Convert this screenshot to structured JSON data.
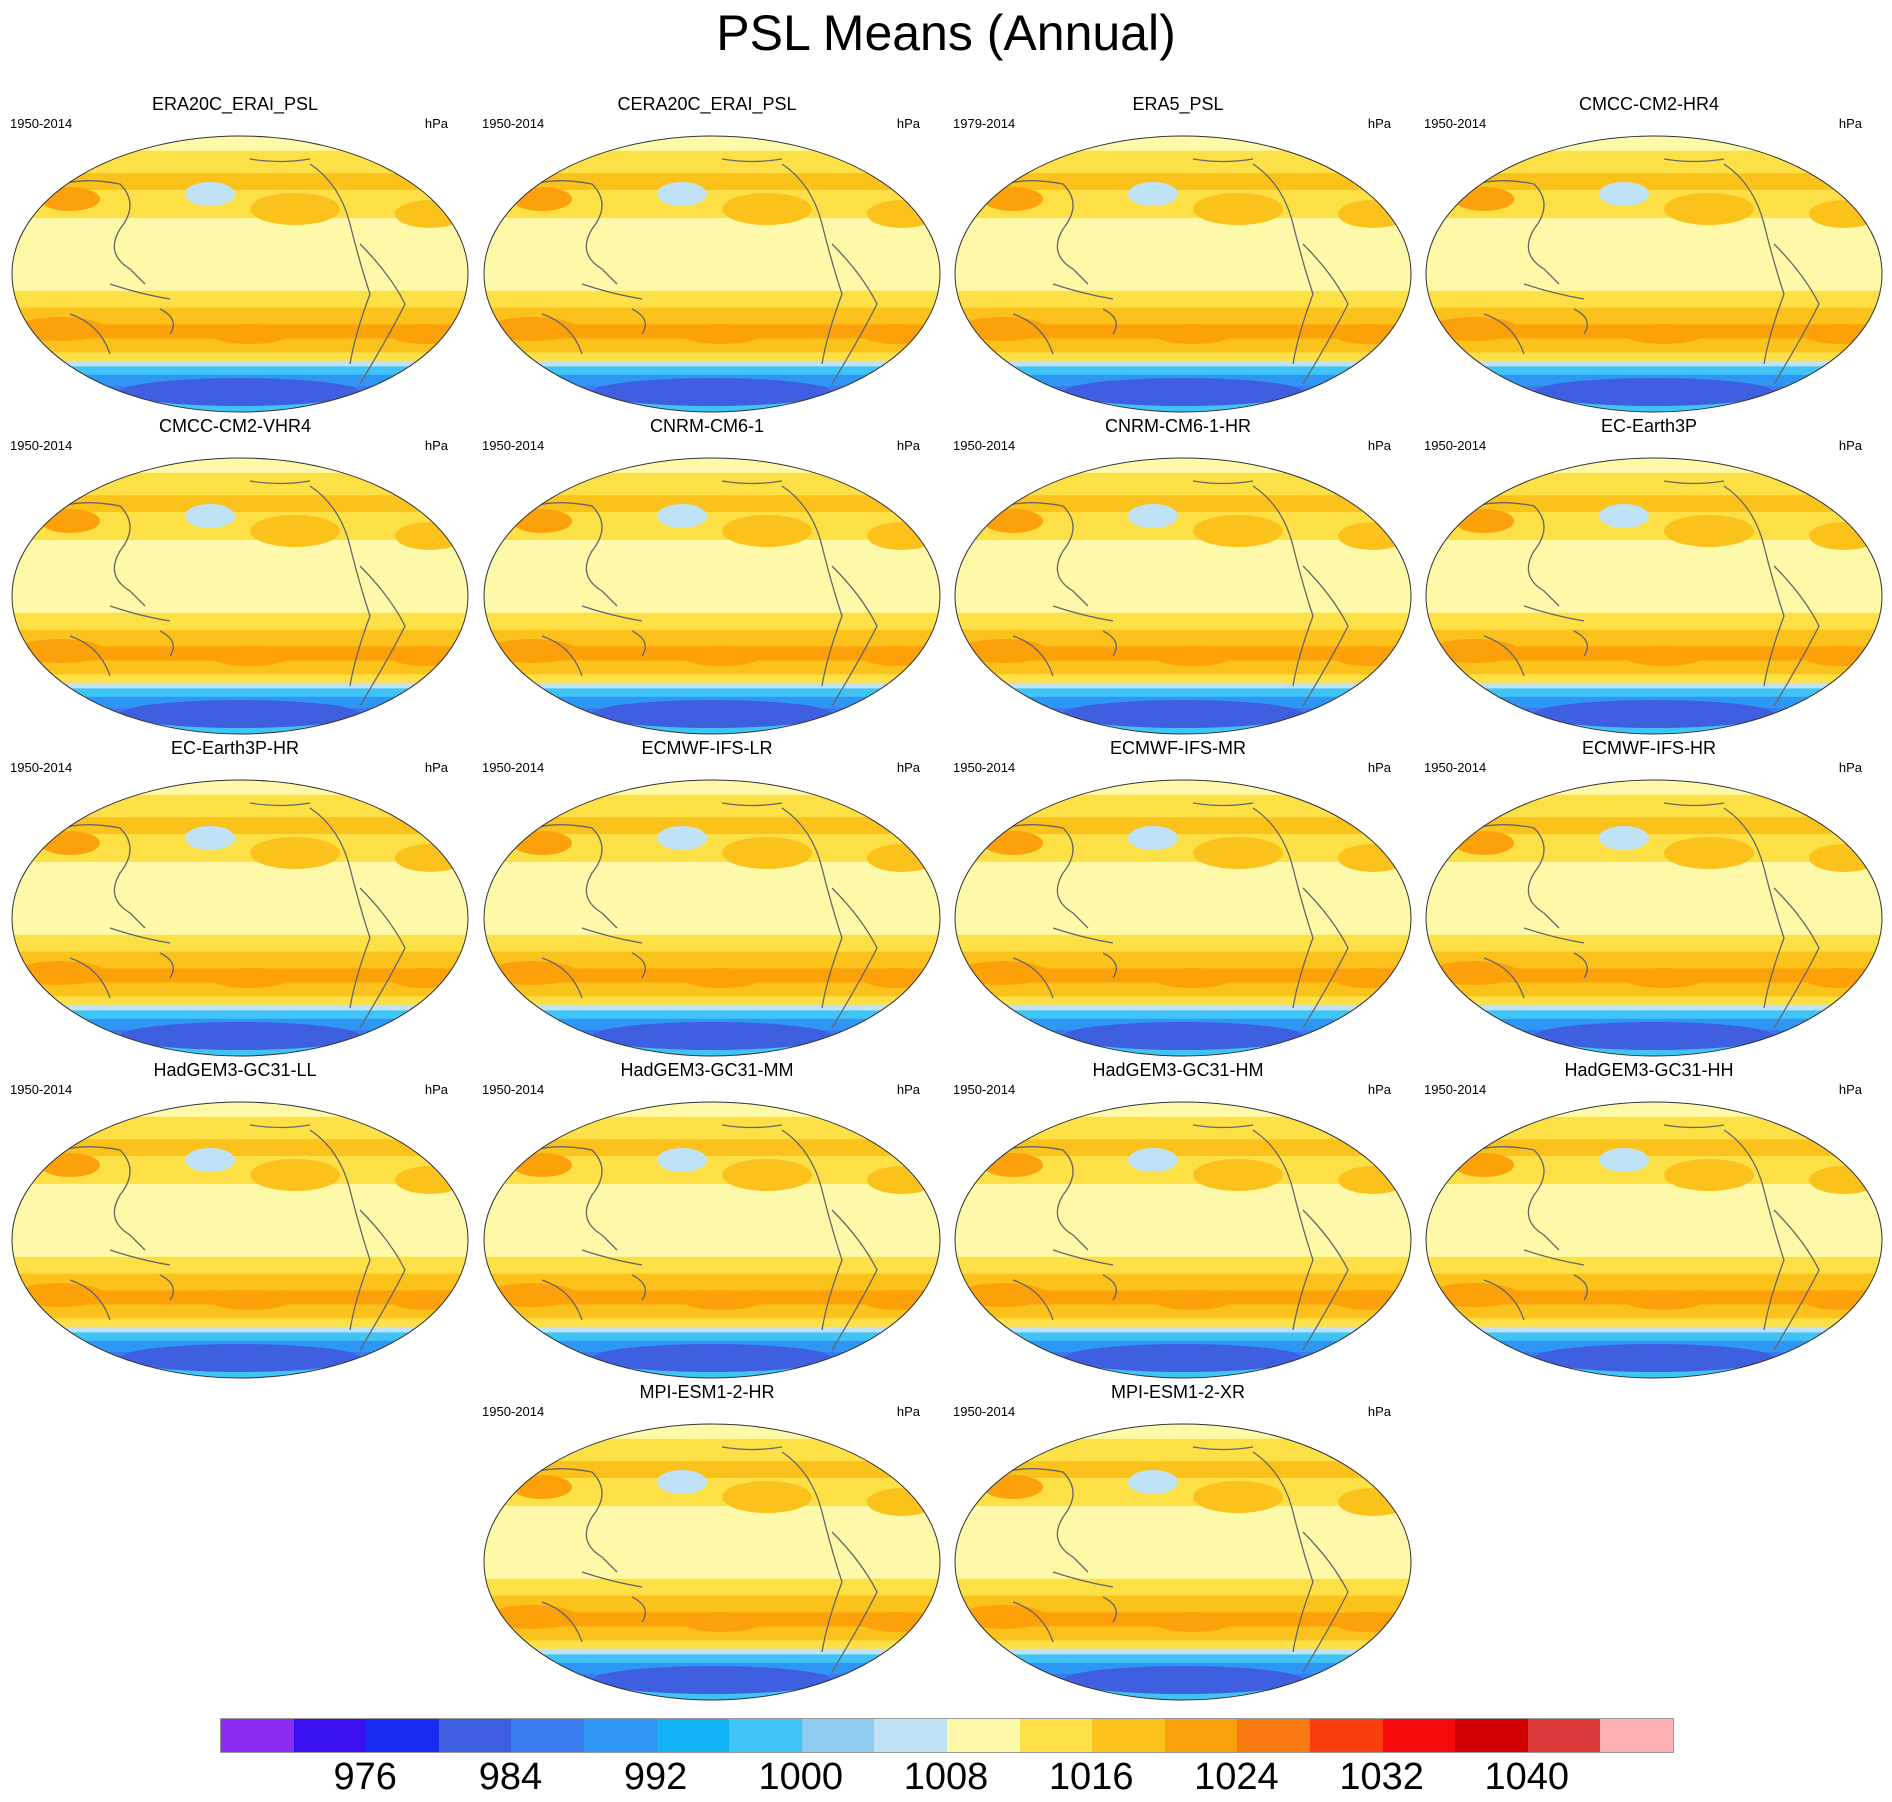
{
  "title": "PSL Means (Annual)",
  "panels": [
    {
      "name": "ERA20C_ERAI_PSL",
      "years": "1950-2014",
      "unit": "hPa"
    },
    {
      "name": "CERA20C_ERAI_PSL",
      "years": "1950-2014",
      "unit": "hPa"
    },
    {
      "name": "ERA5_PSL",
      "years": "1979-2014",
      "unit": "hPa"
    },
    {
      "name": "CMCC-CM2-HR4",
      "years": "1950-2014",
      "unit": "hPa"
    },
    {
      "name": "CMCC-CM2-VHR4",
      "years": "1950-2014",
      "unit": "hPa"
    },
    {
      "name": "CNRM-CM6-1",
      "years": "1950-2014",
      "unit": "hPa"
    },
    {
      "name": "CNRM-CM6-1-HR",
      "years": "1950-2014",
      "unit": "hPa"
    },
    {
      "name": "EC-Earth3P",
      "years": "1950-2014",
      "unit": "hPa"
    },
    {
      "name": "EC-Earth3P-HR",
      "years": "1950-2014",
      "unit": "hPa"
    },
    {
      "name": "ECMWF-IFS-LR",
      "years": "1950-2014",
      "unit": "hPa"
    },
    {
      "name": "ECMWF-IFS-MR",
      "years": "1950-2014",
      "unit": "hPa"
    },
    {
      "name": "ECMWF-IFS-HR",
      "years": "1950-2014",
      "unit": "hPa"
    },
    {
      "name": "HadGEM3-GC31-LL",
      "years": "1950-2014",
      "unit": "hPa"
    },
    {
      "name": "HadGEM3-GC31-MM",
      "years": "1950-2014",
      "unit": "hPa"
    },
    {
      "name": "HadGEM3-GC31-HM",
      "years": "1950-2014",
      "unit": "hPa"
    },
    {
      "name": "HadGEM3-GC31-HH",
      "years": "1950-2014",
      "unit": "hPa"
    },
    {
      "name": "MPI-ESM1-2-HR",
      "years": "1950-2014",
      "unit": "hPa"
    },
    {
      "name": "MPI-ESM1-2-XR",
      "years": "1950-2014",
      "unit": "hPa"
    }
  ],
  "colorbar": {
    "colors": [
      "#8b2cf5",
      "#3a10f0",
      "#1a2cf2",
      "#3e5fe0",
      "#3a7cf0",
      "#2e96f5",
      "#12b4f7",
      "#40c4f8",
      "#8fcdf0",
      "#bfe2f6",
      "#fdf9a8",
      "#fce046",
      "#fcc21c",
      "#fca10a",
      "#fb7a12",
      "#fa3e0c",
      "#f70a0a",
      "#d00000",
      "#dc3a3a",
      "#fcb0b2"
    ],
    "labels": [
      "976",
      "984",
      "992",
      "1000",
      "1008",
      "1016",
      "1024",
      "1032",
      "1040"
    ],
    "label_boundaries": [
      2,
      4,
      6,
      8,
      10,
      12,
      14,
      16,
      18
    ]
  }
}
